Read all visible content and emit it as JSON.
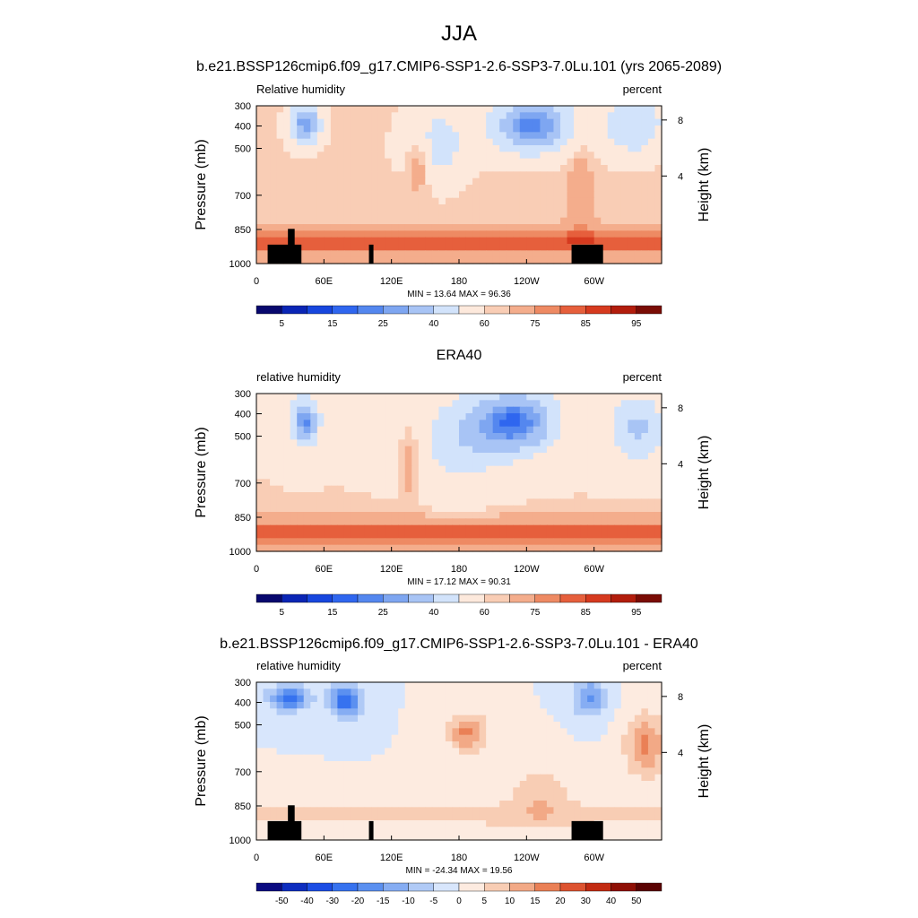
{
  "figure": {
    "title": "JJA",
    "subtitle": "b.e21.BSSP126cmip6.f09_g17.CMIP6-SSP1-2.6-SSP3-7.0Lu.101 (yrs 2065-2089)"
  },
  "chart_data": [
    {
      "type": "heatmap",
      "title": "",
      "left_label": "Relative humidity",
      "right_label": "percent",
      "ylabel": "Pressure (mb)",
      "y2label": "Height (km)",
      "xlabel": "",
      "x_ticks": [
        "0",
        "60E",
        "120E",
        "180",
        "120W",
        "60W"
      ],
      "y_ticks": [
        "300",
        "400",
        "500",
        "700",
        "850",
        "1000"
      ],
      "y2_ticks": [
        "8",
        "4"
      ],
      "min": 13.64,
      "max": 96.36,
      "stats_text": "MIN =  13.64  MAX =  96.36",
      "colorbar_labels": [
        "5",
        "15",
        "25",
        "40",
        "60",
        "75",
        "85",
        "95"
      ],
      "grid": false
    },
    {
      "type": "heatmap",
      "title": "ERA40",
      "left_label": "relative humidity",
      "right_label": "percent",
      "ylabel": "Pressure (mb)",
      "y2label": "Height (km)",
      "xlabel": "",
      "x_ticks": [
        "0",
        "60E",
        "120E",
        "180",
        "120W",
        "60W"
      ],
      "y_ticks": [
        "300",
        "400",
        "500",
        "700",
        "850",
        "1000"
      ],
      "y2_ticks": [
        "8",
        "4"
      ],
      "min": 17.12,
      "max": 90.31,
      "stats_text": "MIN =  17.12  MAX =  90.31",
      "colorbar_labels": [
        "5",
        "15",
        "25",
        "40",
        "60",
        "75",
        "85",
        "95"
      ],
      "grid": false
    },
    {
      "type": "heatmap",
      "title": "b.e21.BSSP126cmip6.f09_g17.CMIP6-SSP1-2.6-SSP3-7.0Lu.101 - ERA40",
      "left_label": "relative humidity",
      "right_label": "percent",
      "ylabel": "Pressure (mb)",
      "y2label": "Height (km)",
      "xlabel": "",
      "x_ticks": [
        "0",
        "60E",
        "120E",
        "180",
        "120W",
        "60W"
      ],
      "y_ticks": [
        "300",
        "400",
        "500",
        "700",
        "850",
        "1000"
      ],
      "y2_ticks": [
        "8",
        "4"
      ],
      "min": -24.34,
      "max": 19.56,
      "stats_text": "MIN = -24.34  MAX =  19.56",
      "colorbar_labels": [
        "-50",
        "-40",
        "-30",
        "-20",
        "-15",
        "-10",
        "-5",
        "0",
        "5",
        "10",
        "15",
        "20",
        "30",
        "40",
        "50"
      ],
      "grid": false
    }
  ],
  "colors": {
    "absolute_scale": [
      "#08086e",
      "#0a25b5",
      "#1746de",
      "#2f66ef",
      "#5487ef",
      "#7ea6f1",
      "#a8c4f5",
      "#d2e3fb",
      "#fde9dc",
      "#f9cdb5",
      "#f4ad8c",
      "#ee8a63",
      "#e65f3c",
      "#d63a1f",
      "#b21d0c",
      "#7a0c05"
    ],
    "difference_scale": [
      "#0b0b80",
      "#0d2dbf",
      "#1b4de4",
      "#3672ef",
      "#5b90f0",
      "#86adf3",
      "#b0caf6",
      "#d8e6fc",
      "#fdebe0",
      "#f8cdb4",
      "#f2a986",
      "#ea8056",
      "#dd5330",
      "#c22b12",
      "#8e0f05",
      "#5a0303"
    ],
    "mask": "#000000"
  }
}
